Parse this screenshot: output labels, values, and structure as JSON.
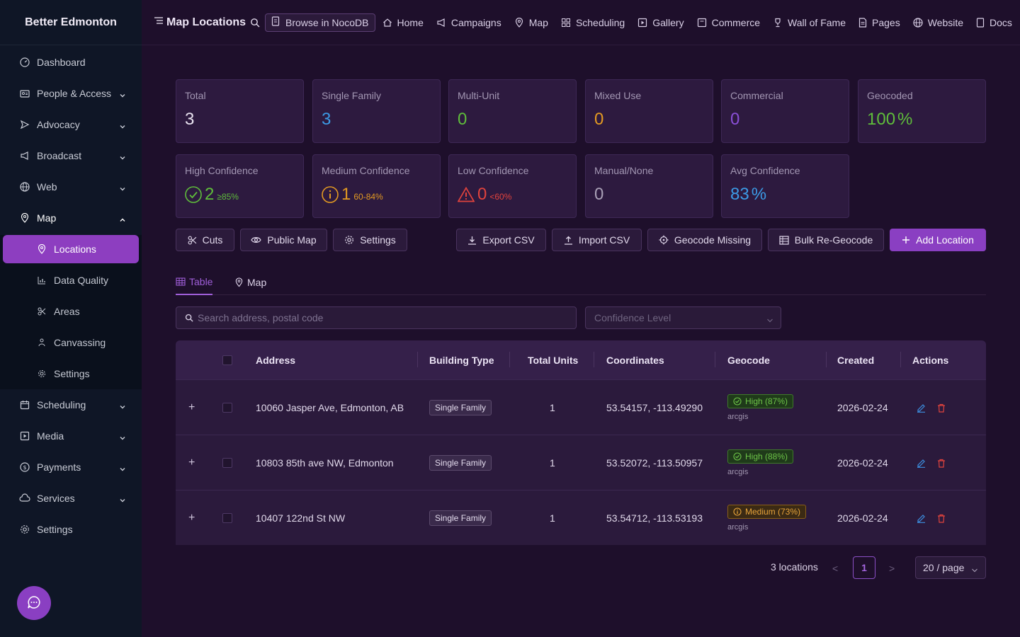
{
  "brand": "Better Edmonton",
  "sidebar": {
    "items": [
      {
        "label": "Dashboard"
      },
      {
        "label": "People & Access"
      },
      {
        "label": "Advocacy"
      },
      {
        "label": "Broadcast"
      },
      {
        "label": "Web"
      },
      {
        "label": "Map"
      }
    ],
    "map_sub": [
      {
        "label": "Locations"
      },
      {
        "label": "Data Quality"
      },
      {
        "label": "Areas"
      },
      {
        "label": "Canvassing"
      },
      {
        "label": "Settings"
      }
    ],
    "items_after": [
      {
        "label": "Scheduling"
      },
      {
        "label": "Media"
      },
      {
        "label": "Payments"
      },
      {
        "label": "Services"
      },
      {
        "label": "Settings"
      }
    ]
  },
  "topbar": {
    "title": "Map Locations",
    "noco": "Browse in NocoDB",
    "links": [
      "Home",
      "Campaigns",
      "Map",
      "Scheduling",
      "Gallery",
      "Commerce",
      "Wall of Fame",
      "Pages",
      "Website",
      "Docs"
    ]
  },
  "stats": {
    "total": {
      "label": "Total",
      "value": "3"
    },
    "single": {
      "label": "Single Family",
      "value": "3"
    },
    "multi": {
      "label": "Multi-Unit",
      "value": "0"
    },
    "mixed": {
      "label": "Mixed Use",
      "value": "0"
    },
    "commercial": {
      "label": "Commercial",
      "value": "0"
    },
    "geocoded": {
      "label": "Geocoded",
      "value": "100",
      "unit": "%"
    },
    "high": {
      "label": "High Confidence",
      "value": "2",
      "suffix": "≥85%"
    },
    "medium": {
      "label": "Medium Confidence",
      "value": "1",
      "suffix": "60-84%"
    },
    "low": {
      "label": "Low Confidence",
      "value": "0",
      "suffix": "<60%"
    },
    "manual": {
      "label": "Manual/None",
      "value": "0"
    },
    "avg": {
      "label": "Avg Confidence",
      "value": "83",
      "unit": "%"
    }
  },
  "actions": {
    "cuts": "Cuts",
    "public_map": "Public Map",
    "settings": "Settings",
    "export": "Export CSV",
    "import": "Import CSV",
    "geocode_missing": "Geocode Missing",
    "bulk": "Bulk Re-Geocode",
    "add": "Add Location"
  },
  "tabs": {
    "table": "Table",
    "map": "Map"
  },
  "filters": {
    "search_placeholder": "Search address, postal code",
    "confidence_placeholder": "Confidence Level"
  },
  "table": {
    "headers": {
      "address": "Address",
      "building_type": "Building Type",
      "total_units": "Total Units",
      "coordinates": "Coordinates",
      "geocode": "Geocode",
      "created": "Created",
      "actions": "Actions"
    },
    "rows": [
      {
        "address": "10060 Jasper Ave, Edmonton, AB",
        "building_type": "Single Family",
        "units": "1",
        "coords": "53.54157, -113.49290",
        "geocode": "High (87%)",
        "source": "arcgis",
        "created": "2026-02-24"
      },
      {
        "address": "10803 85th ave NW, Edmonton",
        "building_type": "Single Family",
        "units": "1",
        "coords": "53.52072, -113.50957",
        "geocode": "High (88%)",
        "source": "arcgis",
        "created": "2026-02-24"
      },
      {
        "address": "10407 122nd St NW",
        "building_type": "Single Family",
        "units": "1",
        "coords": "53.54712, -113.53193",
        "geocode": "Medium (73%)",
        "source": "arcgis",
        "created": "2026-02-24"
      }
    ]
  },
  "pagination": {
    "count": "3 locations",
    "prev": "<",
    "page": "1",
    "next": ">",
    "page_size": "20 / page"
  }
}
